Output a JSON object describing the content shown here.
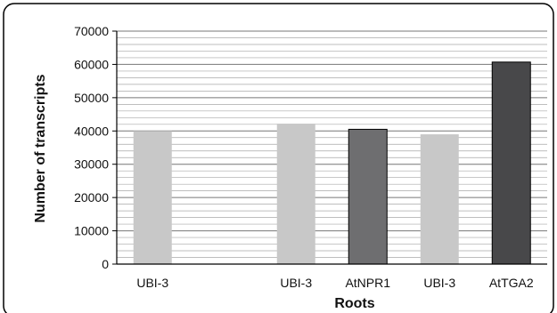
{
  "chart_data": {
    "type": "bar",
    "xlabel": "Roots",
    "ylabel": "Number of transcripts",
    "ylim": [
      0,
      70000
    ],
    "y_ticks": [
      "0",
      "10000",
      "20000",
      "30000",
      "40000",
      "50000",
      "60000",
      "70000"
    ],
    "y_tick_values": [
      0,
      10000,
      20000,
      30000,
      40000,
      50000,
      60000,
      70000
    ],
    "minor_grid_step": 2000,
    "grid": true,
    "legend": "none",
    "categories": [
      "UBI-3",
      "",
      "UBI-3",
      "AtNPR1",
      "UBI-3",
      "AtTGA2"
    ],
    "values": [
      40000,
      null,
      42200,
      40500,
      39000,
      60700
    ],
    "bar_colors": [
      "#c8c8c8",
      null,
      "#c8c8c8",
      "#6e6e70",
      "#c8c8c8",
      "#48484a"
    ]
  }
}
